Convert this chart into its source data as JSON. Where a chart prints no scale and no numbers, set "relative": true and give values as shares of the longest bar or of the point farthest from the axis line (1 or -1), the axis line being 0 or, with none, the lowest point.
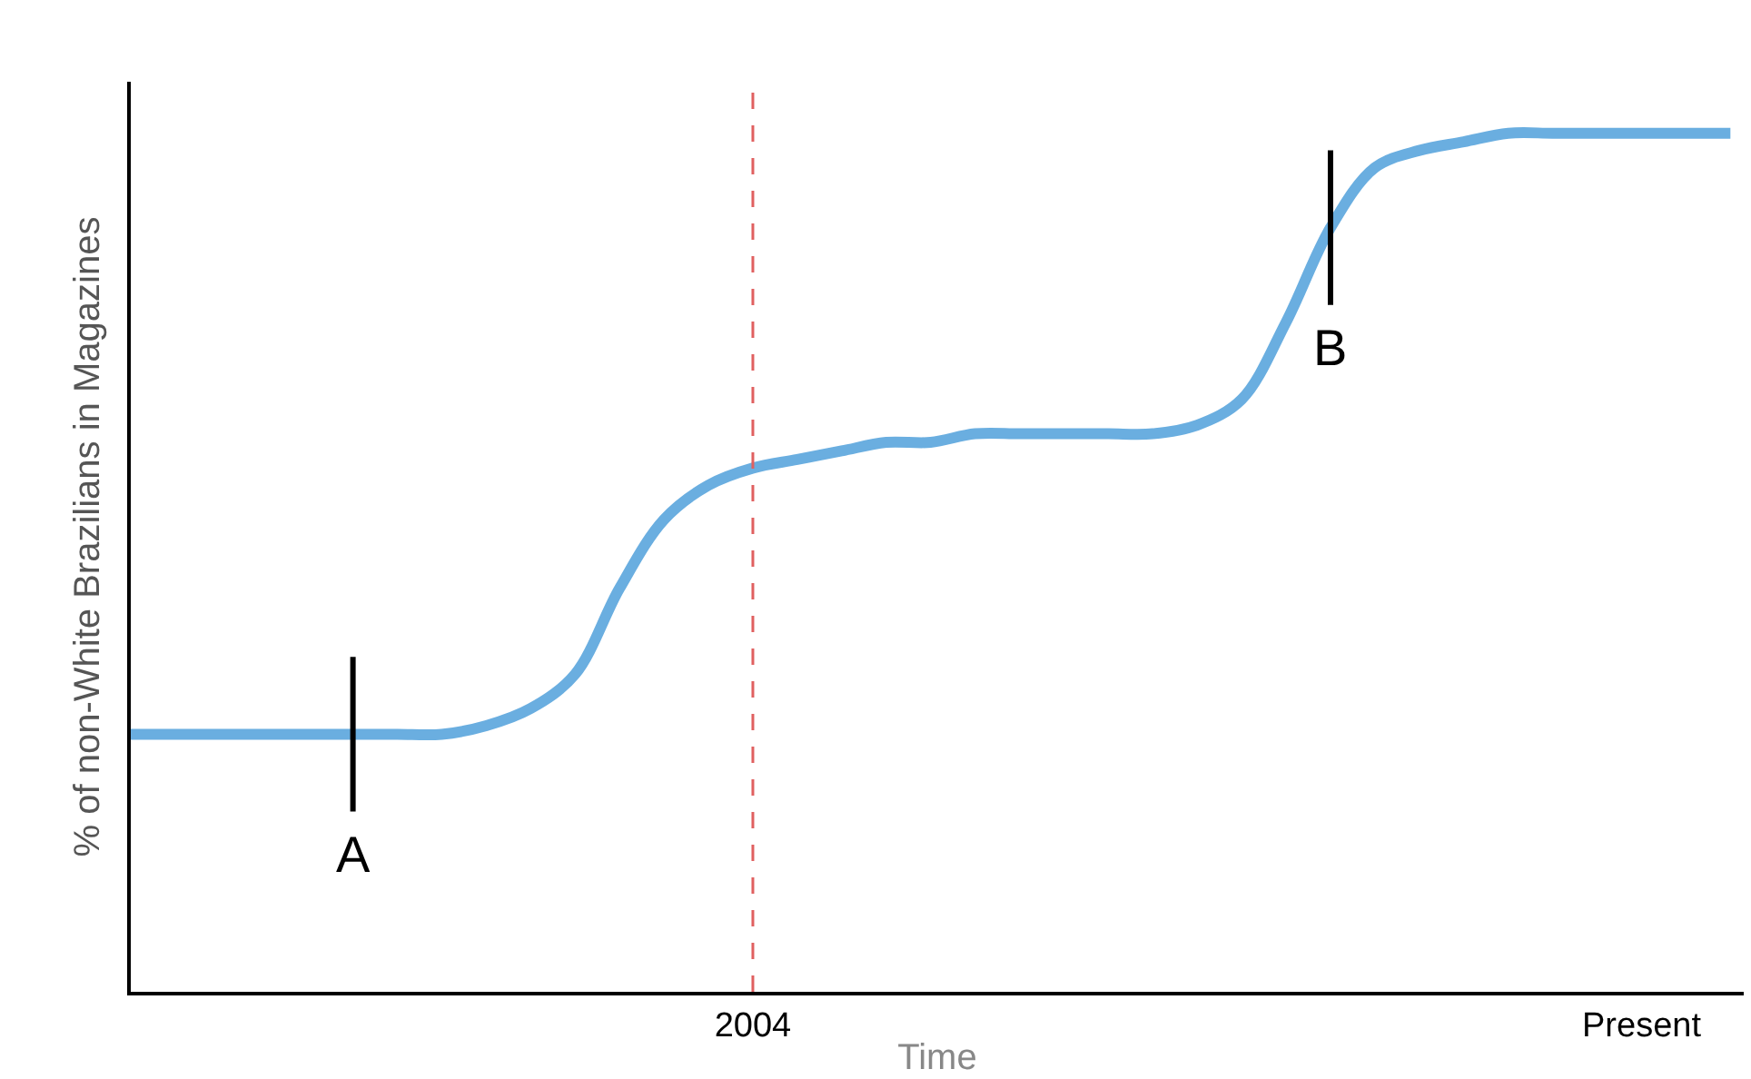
{
  "chart_data": {
    "type": "line",
    "relative": true,
    "xlabel": "Time",
    "ylabel": "% of non-White Brazilians in Magazines",
    "categories": [
      null,
      null,
      null,
      null,
      null,
      null,
      null,
      null,
      null,
      null,
      null,
      null,
      null,
      null,
      "2004",
      null,
      null,
      null,
      null,
      null,
      null,
      null,
      null,
      null,
      null,
      null,
      null,
      null,
      null,
      null,
      null,
      null,
      null,
      null,
      "Present",
      null,
      null
    ],
    "series": [
      {
        "color": "#6aaee0",
        "values": [
          0.3,
          0.3,
          0.3,
          0.3,
          0.3,
          0.3,
          0.3,
          0.3,
          0.31,
          0.33,
          0.37,
          0.47,
          0.55,
          0.59,
          0.61,
          0.62,
          0.63,
          0.64,
          0.64,
          0.65,
          0.65,
          0.65,
          0.65,
          0.65,
          0.66,
          0.69,
          0.78,
          0.89,
          0.96,
          0.98,
          0.99,
          1.0,
          1.0,
          1.0,
          1.0,
          1.0,
          1.0
        ]
      }
    ],
    "ref_lines": [
      {
        "axis": "x",
        "value": "2004",
        "color": "#e06060",
        "line_style": "dashed"
      }
    ],
    "annotations": [
      "A",
      "B"
    ],
    "tick_labels": "x",
    "marker": "none",
    "line_style": "solid"
  }
}
